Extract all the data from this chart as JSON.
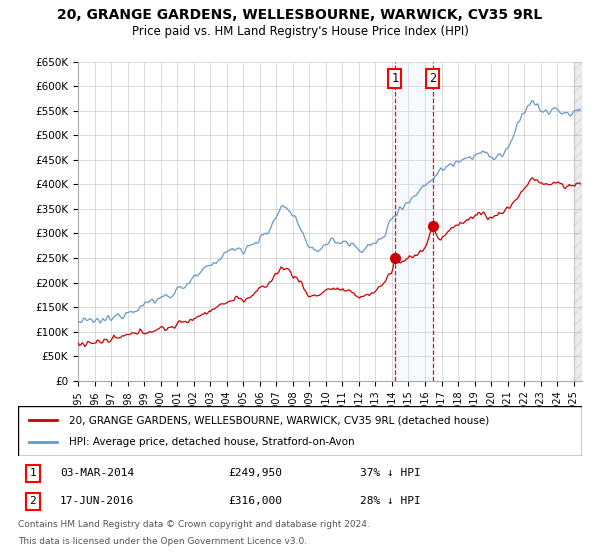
{
  "title": "20, GRANGE GARDENS, WELLESBOURNE, WARWICK, CV35 9RL",
  "subtitle": "Price paid vs. HM Land Registry's House Price Index (HPI)",
  "ylim": [
    0,
    650000
  ],
  "xlim_start": 1995.0,
  "xlim_end": 2025.5,
  "yticks": [
    0,
    50000,
    100000,
    150000,
    200000,
    250000,
    300000,
    350000,
    400000,
    450000,
    500000,
    550000,
    600000,
    650000
  ],
  "ytick_labels": [
    "£0",
    "£50K",
    "£100K",
    "£150K",
    "£200K",
    "£250K",
    "£300K",
    "£350K",
    "£400K",
    "£450K",
    "£500K",
    "£550K",
    "£600K",
    "£650K"
  ],
  "xticks": [
    1995,
    1996,
    1997,
    1998,
    1999,
    2000,
    2001,
    2002,
    2003,
    2004,
    2005,
    2006,
    2007,
    2008,
    2009,
    2010,
    2011,
    2012,
    2013,
    2014,
    2015,
    2016,
    2017,
    2018,
    2019,
    2020,
    2021,
    2022,
    2023,
    2024,
    2025
  ],
  "transaction1": {
    "date": "03-MAR-2014",
    "price": 249950,
    "year": 2014.17,
    "label": "37% ↓ HPI"
  },
  "transaction2": {
    "date": "17-JUN-2016",
    "price": 316000,
    "year": 2016.46,
    "label": "28% ↓ HPI"
  },
  "hpi_color": "#6699cc",
  "price_color": "#cc0000",
  "legend1": "20, GRANGE GARDENS, WELLESBOURNE, WARWICK, CV35 9RL (detached house)",
  "legend2": "HPI: Average price, detached house, Stratford-on-Avon",
  "footer1": "Contains HM Land Registry data © Crown copyright and database right 2024.",
  "footer2": "This data is licensed under the Open Government Licence v3.0.",
  "background_color": "#ffffff",
  "grid_color": "#cccccc",
  "shaded_region_color": "#ddeeff"
}
